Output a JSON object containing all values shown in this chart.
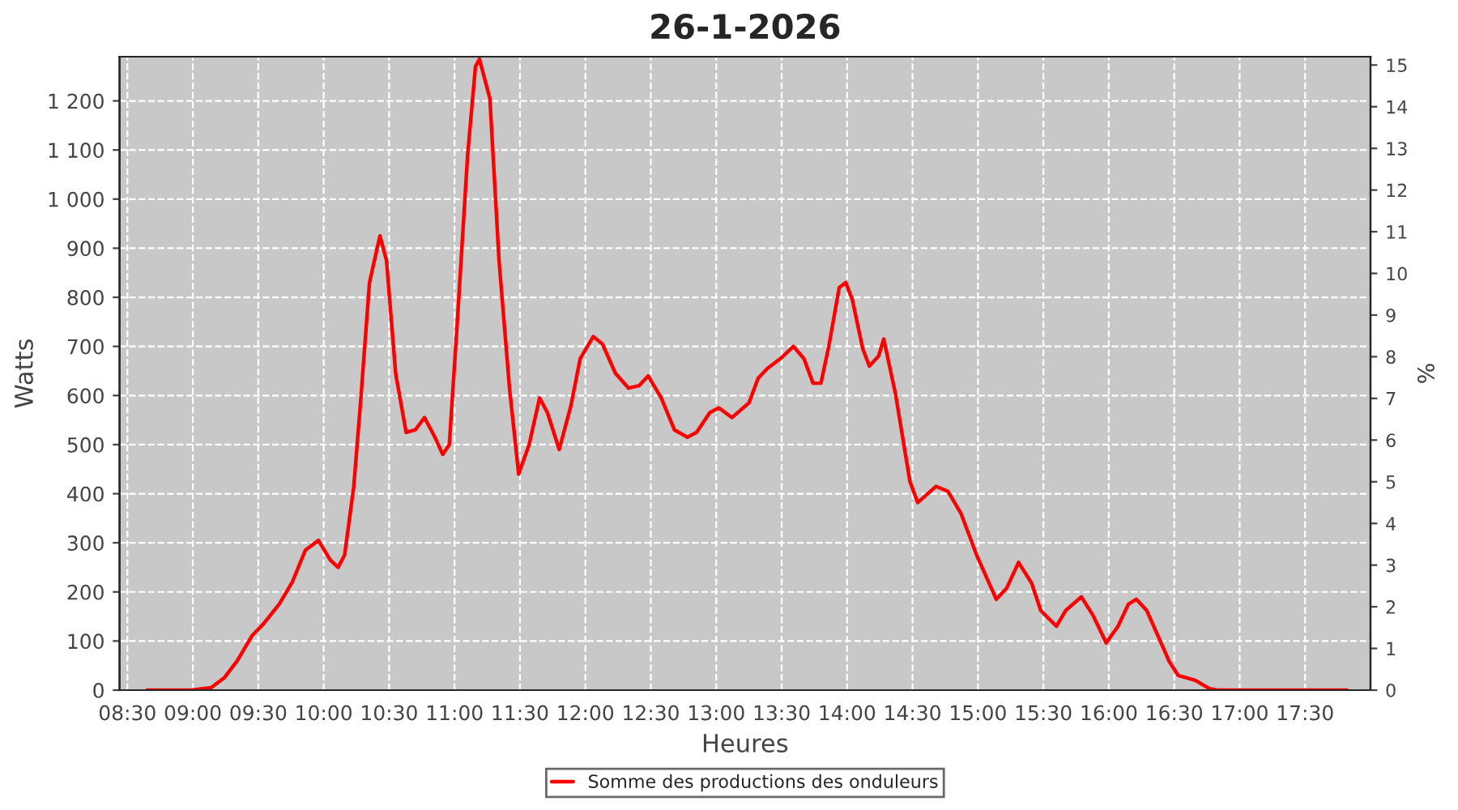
{
  "chart_data": {
    "type": "line",
    "title": "26-1-2026",
    "xlabel": "Heures",
    "ylabel": "Watts",
    "y2label": "%",
    "x": [
      8.65,
      8.99,
      9.14,
      9.24,
      9.34,
      9.45,
      9.54,
      9.66,
      9.76,
      9.86,
      9.96,
      10.05,
      10.11,
      10.16,
      10.23,
      10.28,
      10.35,
      10.43,
      10.48,
      10.55,
      10.63,
      10.7,
      10.77,
      10.85,
      10.91,
      10.96,
      11.02,
      11.1,
      11.16,
      11.19,
      11.27,
      11.34,
      11.42,
      11.49,
      11.57,
      11.65,
      11.71,
      11.8,
      11.89,
      11.96,
      12.06,
      12.13,
      12.23,
      12.33,
      12.41,
      12.48,
      12.58,
      12.68,
      12.78,
      12.85,
      12.95,
      13.02,
      13.12,
      13.25,
      13.32,
      13.39,
      13.49,
      13.59,
      13.67,
      13.74,
      13.8,
      13.86,
      13.94,
      13.99,
      14.04,
      14.12,
      14.17,
      14.24,
      14.28,
      14.37,
      14.48,
      14.54,
      14.68,
      14.77,
      14.87,
      14.99,
      15.14,
      15.22,
      15.31,
      15.41,
      15.48,
      15.6,
      15.67,
      15.79,
      15.88,
      15.98,
      16.07,
      16.15,
      16.21,
      16.29,
      16.4,
      16.46,
      16.53,
      16.66,
      16.77,
      16.83,
      17.82
    ],
    "series": [
      {
        "name": "Somme des productions des onduleurs",
        "color": "#ff0000",
        "values": [
          0,
          0,
          5,
          25,
          60,
          110,
          135,
          175,
          220,
          285,
          305,
          265,
          250,
          275,
          415,
          580,
          830,
          925,
          875,
          645,
          525,
          530,
          555,
          515,
          480,
          500,
          745,
          1090,
          1270,
          1285,
          1205,
          875,
          615,
          440,
          500,
          595,
          565,
          490,
          580,
          675,
          720,
          705,
          645,
          615,
          620,
          640,
          595,
          530,
          515,
          525,
          565,
          575,
          555,
          585,
          635,
          655,
          675,
          700,
          675,
          625,
          625,
          700,
          820,
          830,
          795,
          695,
          660,
          680,
          715,
          603,
          425,
          382,
          415,
          405,
          360,
          275,
          185,
          208,
          260,
          218,
          162,
          130,
          162,
          190,
          152,
          96,
          130,
          175,
          185,
          162,
          96,
          59,
          30,
          20,
          3,
          0,
          0
        ]
      }
    ],
    "xlim": [
      8.44,
      18.0
    ],
    "xticks": [
      {
        "value": 8.5,
        "label": "08:30"
      },
      {
        "value": 9,
        "label": "09:00"
      },
      {
        "value": 9.5,
        "label": "09:30"
      },
      {
        "value": 10,
        "label": "10:00"
      },
      {
        "value": 10.5,
        "label": "10:30"
      },
      {
        "value": 11,
        "label": "11:00"
      },
      {
        "value": 11.5,
        "label": "11:30"
      },
      {
        "value": 12,
        "label": "12:00"
      },
      {
        "value": 12.5,
        "label": "12:30"
      },
      {
        "value": 13,
        "label": "13:00"
      },
      {
        "value": 13.5,
        "label": "13:30"
      },
      {
        "value": 14,
        "label": "14:00"
      },
      {
        "value": 14.5,
        "label": "14:30"
      },
      {
        "value": 15,
        "label": "15:00"
      },
      {
        "value": 15.5,
        "label": "15:30"
      },
      {
        "value": 16,
        "label": "16:00"
      },
      {
        "value": 16.5,
        "label": "16:30"
      },
      {
        "value": 17,
        "label": "17:00"
      },
      {
        "value": 17.5,
        "label": "17:30"
      }
    ],
    "ylim": [
      0,
      1290
    ],
    "yticks": [
      0,
      100,
      200,
      300,
      400,
      500,
      600,
      700,
      800,
      900,
      {
        "value": 1000,
        "label": "1 000"
      },
      {
        "value": 1100,
        "label": "1 100"
      },
      {
        "value": 1200,
        "label": "1 200"
      }
    ],
    "y2lim": [
      0,
      15.2
    ],
    "y2ticks": [
      0,
      1,
      2,
      3,
      4,
      5,
      6,
      7,
      8,
      9,
      10,
      11,
      12,
      13,
      14,
      15
    ],
    "grid": true,
    "legend": "bottom",
    "line_style": "solid"
  }
}
